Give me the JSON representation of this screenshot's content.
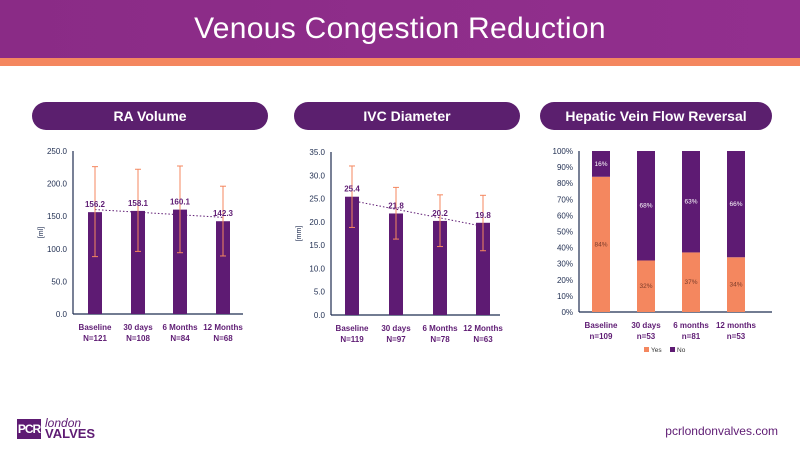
{
  "title": "Venous Congestion Reduction",
  "footer": {
    "logo_box": "PCR",
    "logo_line1": "london",
    "logo_line2": "VALVES",
    "url": "pcrlondonvalves.com"
  },
  "colors": {
    "purple": "#5e1b73",
    "orange": "#f4875f",
    "header": "#8a2b86"
  },
  "chart_data": [
    {
      "type": "bar",
      "title": "RA Volume",
      "ylabel": "[ml]",
      "ylim": [
        0,
        250
      ],
      "yticks": [
        "0.0",
        "50.0",
        "100.0",
        "150.0",
        "200.0",
        "250.0"
      ],
      "categories": [
        [
          "Baseline",
          "N=121"
        ],
        [
          "30 days",
          "N=108"
        ],
        [
          "6 Months",
          "N=84"
        ],
        [
          "12 Months",
          "N=68"
        ]
      ],
      "values": [
        156.2,
        158.1,
        160.1,
        142.3
      ],
      "labels": [
        "156.2",
        "158.1",
        "160.1",
        "142.3"
      ],
      "error_low": [
        88,
        96,
        94,
        89
      ],
      "error_high": [
        226,
        222,
        227,
        196
      ],
      "trendline": "linear-dotted"
    },
    {
      "type": "bar",
      "title": "IVC Diameter",
      "ylabel": "[mm]",
      "ylim": [
        0,
        35
      ],
      "yticks": [
        "0.0",
        "5.0",
        "10.0",
        "15.0",
        "20.0",
        "25.0",
        "30.0",
        "35.0"
      ],
      "categories": [
        [
          "Baseline",
          "N=119"
        ],
        [
          "30 days",
          "N=97"
        ],
        [
          "6 Months",
          "N=78"
        ],
        [
          "12 Months",
          "N=63"
        ]
      ],
      "values": [
        25.4,
        21.8,
        20.2,
        19.8
      ],
      "labels": [
        "25.4",
        "21.8",
        "20.2",
        "19.8"
      ],
      "error_low": [
        18.8,
        16.3,
        14.7,
        13.8
      ],
      "error_high": [
        32.0,
        27.4,
        25.8,
        25.7
      ],
      "trendline": "linear-dotted"
    },
    {
      "type": "bar",
      "stacked": true,
      "title": "Hepatic Vein Flow Reversal",
      "ylim": [
        0,
        100
      ],
      "yticks": [
        "0%",
        "10%",
        "20%",
        "30%",
        "40%",
        "50%",
        "60%",
        "70%",
        "80%",
        "90%",
        "100%"
      ],
      "categories": [
        [
          "Baseline",
          "n=109"
        ],
        [
          "30 days",
          "n=53"
        ],
        [
          "6 months",
          "n=81"
        ],
        [
          "12 months",
          "n=53"
        ]
      ],
      "series": [
        {
          "name": "Yes",
          "values": [
            84,
            32,
            37,
            34
          ],
          "labels": [
            "84%",
            "32%",
            "37%",
            "34%"
          ]
        },
        {
          "name": "No",
          "values": [
            16,
            68,
            63,
            66
          ],
          "labels": [
            "16%",
            "68%",
            "63%",
            "66%"
          ]
        }
      ],
      "legend": "bottom"
    }
  ]
}
